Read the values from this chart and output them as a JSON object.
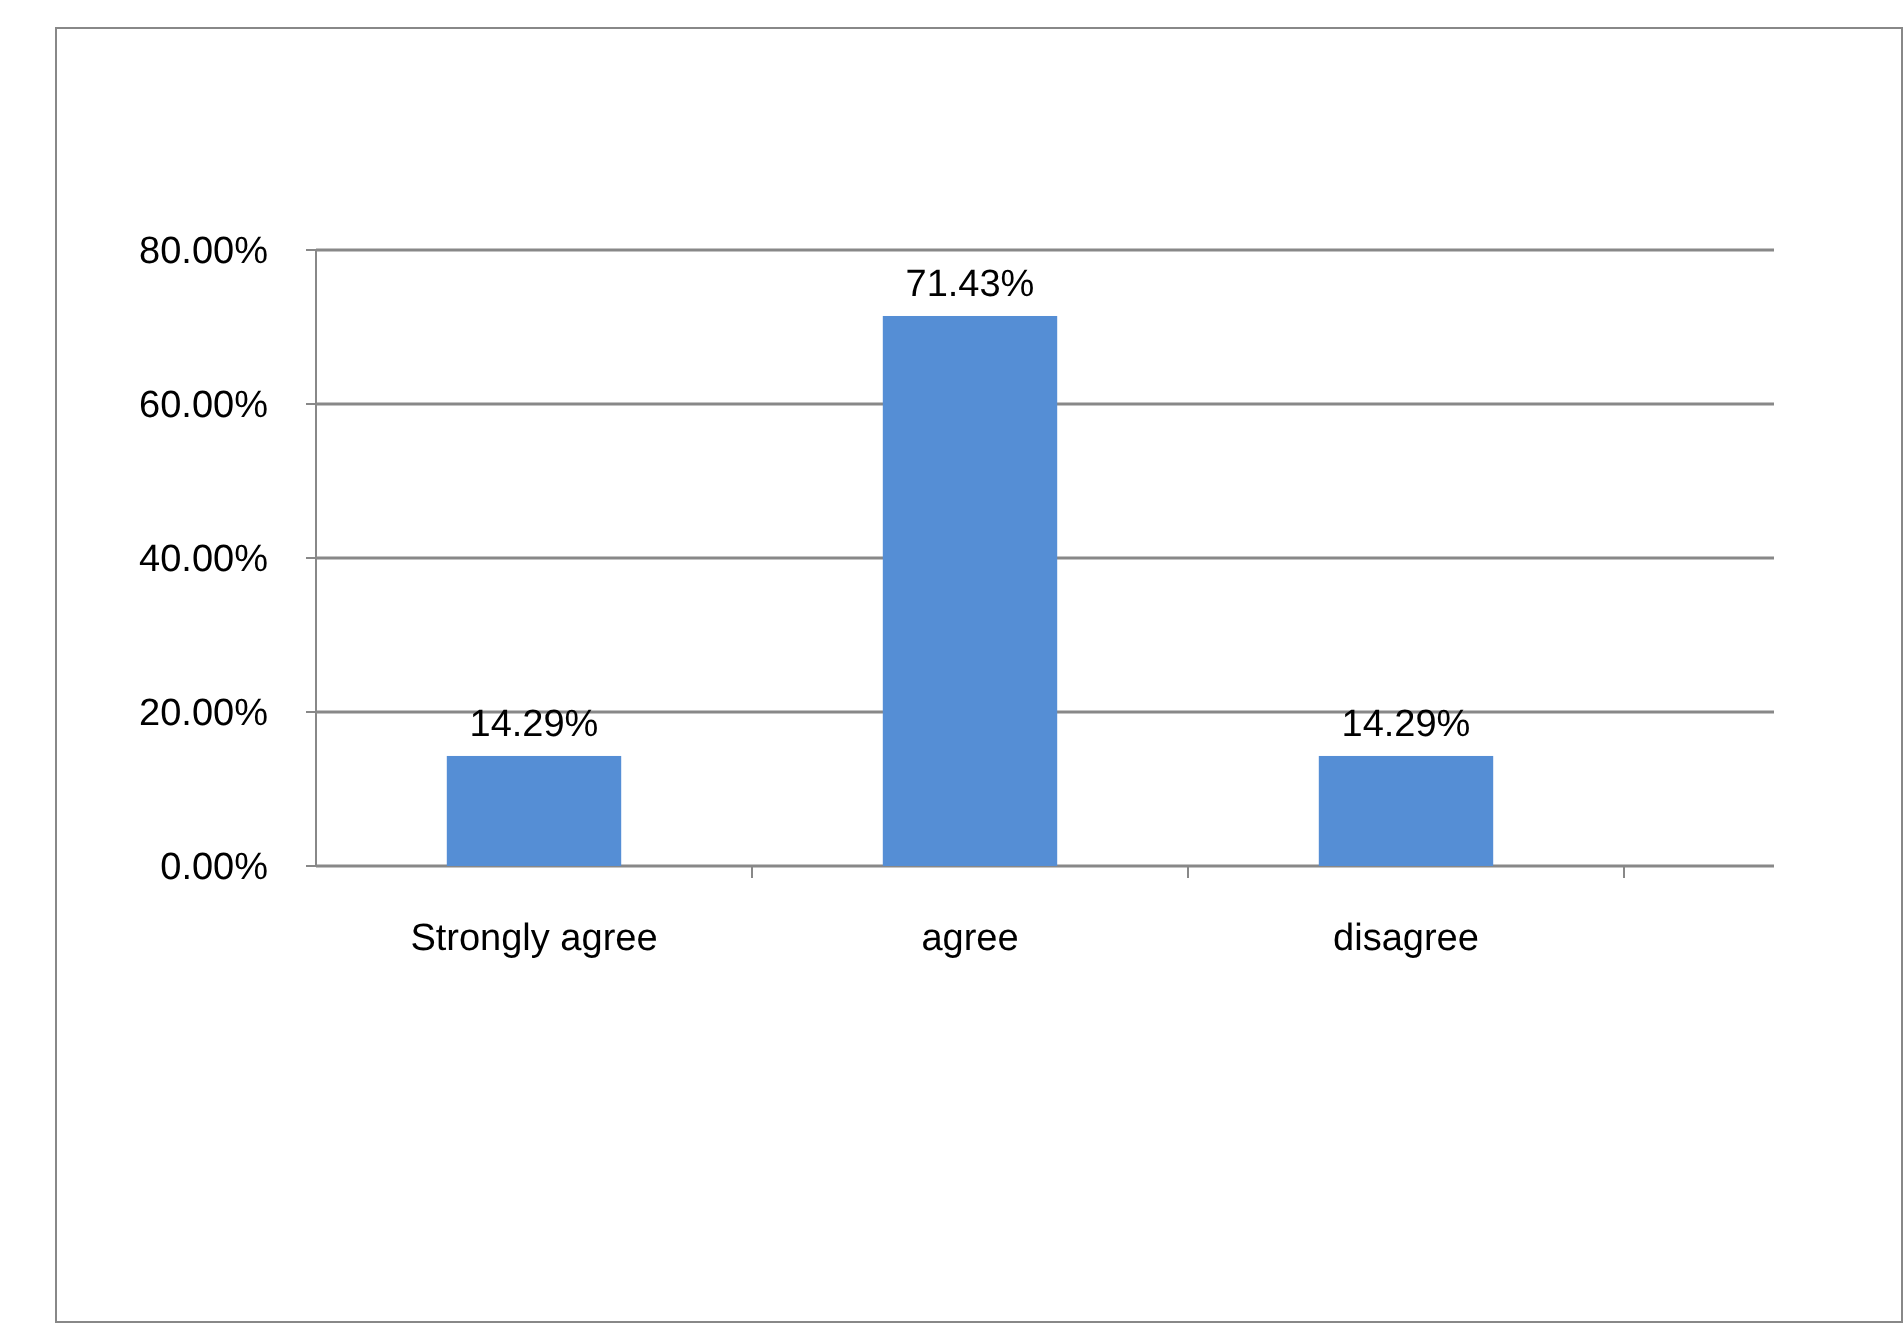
{
  "chart_data": {
    "type": "bar",
    "categories": [
      "Strongly agree",
      "agree",
      "disagree"
    ],
    "values": [
      14.29,
      71.43,
      14.29
    ],
    "value_labels": [
      "14.29%",
      "71.43%",
      "14.29%"
    ],
    "color": "#558ed5",
    "ylim": [
      0,
      80
    ],
    "yticks": [
      {
        "value": 0,
        "label": "0.00%"
      },
      {
        "value": 20,
        "label": "20.00%"
      },
      {
        "value": 40,
        "label": "40.00%"
      },
      {
        "value": 60,
        "label": "60.00%"
      },
      {
        "value": 80,
        "label": "80.00%"
      }
    ],
    "grid": true
  }
}
